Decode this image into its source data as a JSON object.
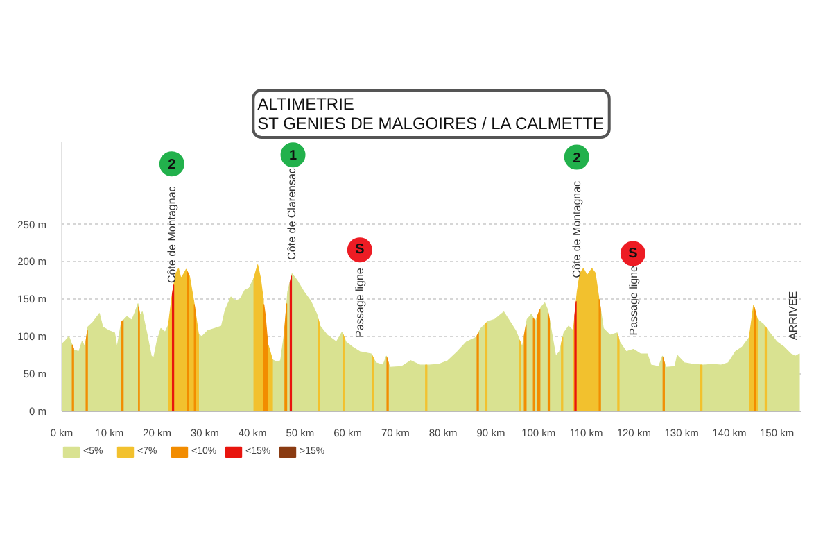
{
  "chart_data": {
    "type": "area",
    "title": "ALTIMETRIE",
    "subtitle": "ST GENIES DE MALGOIRES / LA CALMETTE",
    "xlim": [
      0,
      155
    ],
    "ylim": [
      0,
      360
    ],
    "xticks": [
      {
        "value": 0,
        "label": "0 km"
      },
      {
        "value": 10,
        "label": "10 km"
      },
      {
        "value": 20,
        "label": "20 km"
      },
      {
        "value": 30,
        "label": "30 km"
      },
      {
        "value": 40,
        "label": "40 km"
      },
      {
        "value": 50,
        "label": "50 km"
      },
      {
        "value": 60,
        "label": "60 km"
      },
      {
        "value": 70,
        "label": "70 km"
      },
      {
        "value": 80,
        "label": "80 km"
      },
      {
        "value": 90,
        "label": "90 km"
      },
      {
        "value": 100,
        "label": "100 km"
      },
      {
        "value": 110,
        "label": "110 km"
      },
      {
        "value": 120,
        "label": "120 km"
      },
      {
        "value": 130,
        "label": "130 km"
      },
      {
        "value": 140,
        "label": "140 km"
      },
      {
        "value": 150,
        "label": "150 km"
      }
    ],
    "yticks": [
      {
        "value": 0,
        "label": "0 m"
      },
      {
        "value": 50,
        "label": "50 m"
      },
      {
        "value": 100,
        "label": "100 m"
      },
      {
        "value": 150,
        "label": "150 m"
      },
      {
        "value": 200,
        "label": "200 m"
      },
      {
        "value": 250,
        "label": "250 m"
      }
    ],
    "grid": "y",
    "legend": "bottom left",
    "series": [
      {
        "name": "<5%",
        "color": "#d9e291",
        "x": [
          0,
          0.7,
          1.5,
          2.6,
          3.6,
          4.3,
          4.9,
          5.5,
          6.5,
          7.9,
          8.6,
          9.9,
          11.1,
          11.6,
          12.5,
          13.7,
          14.7,
          15.4,
          16.0,
          16.4,
          16.9,
          17.9,
          18.8,
          19.3,
          20.0,
          20.8,
          21.7,
          22.4,
          23.1,
          23.9,
          24.5,
          25.0,
          25.6,
          26.1,
          26.8,
          27.7,
          28.7,
          29.4,
          30.6,
          32.1,
          33.5,
          34.3,
          35.5,
          36.4,
          37.4,
          38.4,
          39.3,
          40.3,
          41.1,
          41.7,
          42.7,
          43.2,
          44.2,
          45.1,
          45.9,
          46.7,
          47.4,
          48.3,
          49.3,
          50.8,
          52.2,
          53.5,
          54.2,
          55.7,
          57.6,
          58.8,
          59.6,
          61.0,
          62.5,
          64.9,
          65.9,
          67.4,
          68.1,
          68.8,
          71.3,
          73.2,
          75.2,
          77.1,
          79.1,
          81.0,
          83.0,
          84.9,
          86.9,
          87.9,
          89.3,
          90.8,
          92.7,
          93.7,
          95.2,
          96.6,
          97.6,
          98.5,
          99.3,
          100.5,
          101.3,
          101.9,
          102.6,
          103.6,
          104.4,
          105.3,
          106.3,
          107.3,
          108.1,
          108.7,
          109.4,
          110.2,
          111.2,
          111.9,
          112.6,
          113.6,
          115.0,
          116.5,
          117.0,
          118.4,
          119.9,
          121.4,
          122.8,
          123.6,
          125.2,
          126.0,
          126.7,
          128.6,
          129.1,
          130.6,
          132.5,
          134.5,
          136.4,
          138.3,
          139.8,
          141.3,
          142.7,
          144.2,
          145.1,
          145.9,
          147.1,
          148.5,
          150.0,
          151.5,
          152.9,
          153.9,
          154.7
        ],
        "values": [
          90,
          94,
          100,
          82,
          80,
          94,
          85,
          113,
          119,
          131,
          113,
          108,
          105,
          85,
          119,
          127,
          122,
          133,
          144,
          128,
          133,
          103,
          74,
          72,
          94,
          111,
          106,
          116,
          null,
          null,
          null,
          null,
          null,
          null,
          null,
          null,
          103,
          100,
          108,
          111,
          114,
          136,
          153,
          148,
          150,
          162,
          165,
          178,
          null,
          null,
          null,
          null,
          69,
          66,
          68,
          105,
          160,
          184,
          176,
          160,
          148,
          130,
          114,
          102,
          93,
          106,
          93,
          86,
          80,
          77,
          65,
          62,
          74,
          59,
          60,
          68,
          62,
          62,
          63,
          68,
          80,
          93,
          99,
          111,
          120,
          123,
          133,
          123,
          108,
          86,
          123,
          130,
          120,
          139,
          145,
          136,
          111,
          74,
          80,
          105,
          114,
          108,
          null,
          null,
          null,
          null,
          null,
          null,
          154,
          111,
          102,
          105,
          93,
          80,
          83,
          77,
          77,
          62,
          60,
          74,
          59,
          60,
          75,
          65,
          63,
          62,
          63,
          62,
          65,
          80,
          86,
          99,
          null,
          123,
          117,
          105,
          93,
          86,
          77,
          74,
          77
        ]
      },
      {
        "name": "<7%",
        "color": "#f2c12e",
        "x": [
          22.4,
          23.1,
          23.9,
          24.5,
          25.0,
          25.6,
          26.1,
          26.8,
          27.7,
          28.2,
          28.7,
          34,
          40.3,
          41.1,
          41.7,
          42.3,
          42.8,
          43.3,
          44.2,
          50,
          53.8,
          54.1,
          56,
          59.0,
          59.3,
          62,
          65.1,
          65.4,
          70,
          76.3,
          76.6,
          82,
          88.9,
          89.2,
          92,
          96.0,
          96.3,
          100,
          104.8,
          105.1,
          106,
          107.3,
          108.1,
          108.7,
          109.4,
          110.2,
          111.2,
          111.9,
          112.3,
          112.6,
          114,
          116.6,
          116.9,
          125,
          134.0,
          134.3,
          140,
          144.2,
          144.6,
          145.1,
          145.6,
          145.9,
          146.5,
          147.5,
          147.8
        ],
        "values": [
          116,
          153,
          184,
          191,
          178,
          184,
          190,
          181,
          147,
          125,
          103,
          null,
          178,
          196,
          178,
          148,
          null,
          89,
          69,
          null,
          123,
          116,
          null,
          103,
          98,
          null,
          75,
          71,
          null,
          62,
          62,
          null,
          117,
          119,
          null,
          95,
          91,
          null,
          91,
          99,
          null,
          108,
          160,
          185,
          191,
          182,
          191,
          185,
          167,
          154,
          null,
          103,
          95,
          null,
          62,
          62,
          null,
          99,
          118,
          142,
          130,
          123,
          null,
          114,
          111
        ]
      },
      {
        "name": "<10%",
        "color": "#f28c00",
        "x": [
          2.2,
          2.5,
          4,
          5.1,
          5.4,
          9,
          12.6,
          12.9,
          14,
          16.1,
          16.3,
          20,
          26.3,
          26.6,
          27.3,
          27.8,
          28.1,
          35,
          42.4,
          42.7,
          43.2,
          45,
          46.8,
          47.2,
          60,
          68.2,
          68.5,
          80,
          87.1,
          87.4,
          95,
          97.0,
          97.4,
          98.2,
          98.9,
          99.2,
          99.5,
          99.8,
          100.3,
          101.5,
          102.0,
          102.3,
          110,
          112.7,
          113.0,
          120,
          126.1,
          126.4,
          140,
          145.2,
          145.5
        ],
        "values": [
          89,
          84,
          null,
          94,
          108,
          null,
          120,
          122,
          null,
          140,
          132,
          null,
          187,
          184,
          null,
          143,
          129,
          null,
          143,
          128,
          91,
          null,
          113,
          144,
          null,
          72,
          65,
          null,
          101,
          105,
          null,
          101,
          116,
          null,
          125,
          121,
          null,
          128,
          136,
          null,
          132,
          122,
          null,
          150,
          137,
          null,
          72,
          65,
          null,
          140,
          132
        ]
      },
      {
        "name": "<15%",
        "color": "#e8150e",
        "x": [
          23.2,
          23.5,
          35,
          47.9,
          48.2,
          80,
          107.6,
          107.9
        ],
        "values": [
          157,
          169,
          null,
          173,
          181,
          null,
          128,
          147
        ]
      },
      {
        "name": ">15%",
        "color": "#8a3b12"
      },
      {
        "type": "scatter",
        "marker": "circle",
        "x": [
          23.1,
          48.5,
          62.5,
          108.0,
          119.8
        ],
        "values": [
          331,
          343,
          216,
          340,
          211
        ],
        "colors": [
          "#22b14c",
          "#22b14c",
          "#ed1c24",
          "#22b14c",
          "#ed1c24"
        ]
      }
    ],
    "annotations": [
      {
        "text": "2",
        "x": 23.1,
        "y": 331
      },
      {
        "text": "1",
        "x": 48.5,
        "y": 343
      },
      {
        "text": "S",
        "x": 62.5,
        "y": 216
      },
      {
        "text": "2",
        "x": 108.0,
        "y": 340
      },
      {
        "text": "S",
        "x": 119.8,
        "y": 211
      },
      {
        "text": "Côte de Montagnac",
        "x": 23.1,
        "y": 153
      },
      {
        "text": "Côte de Clarensac",
        "x": 48.3,
        "y": 184
      },
      {
        "text": "Passage ligne",
        "x": 62.5,
        "y": 80
      },
      {
        "text": "Côte de Montagnac",
        "x": 108.1,
        "y": 160
      },
      {
        "text": "Passage ligne",
        "x": 119.9,
        "y": 83
      },
      {
        "text": "ARRIVEE",
        "x": 154.7,
        "y": 77
      }
    ]
  }
}
